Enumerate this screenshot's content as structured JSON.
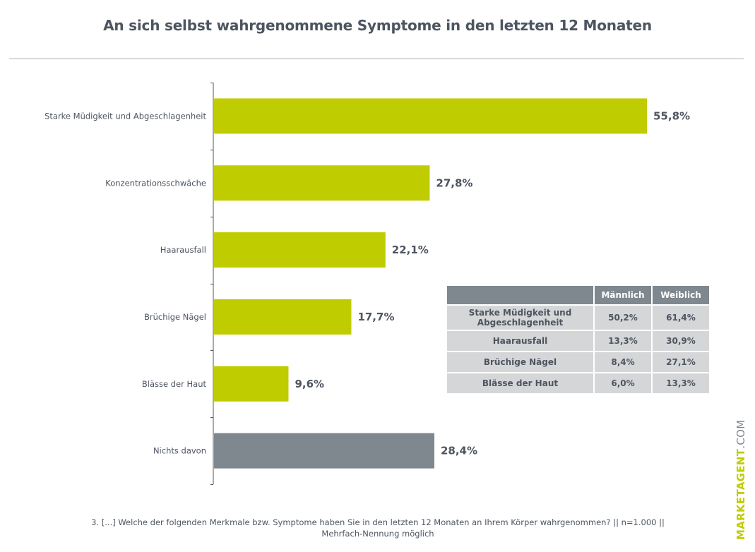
{
  "chart_data": {
    "type": "bar",
    "orientation": "horizontal",
    "title": "An sich selbst wahrgenommene Symptome in den letzten 12 Monaten",
    "categories": [
      "Starke Müdigkeit und Abgeschlagenheit",
      "Konzentrationsschwäche",
      "Haarausfall",
      "Brüchige Nägel",
      "Blässe der Haut",
      "Nichts davon"
    ],
    "values": [
      55.8,
      27.8,
      22.1,
      17.7,
      9.6,
      28.4
    ],
    "value_labels": [
      "55,8%",
      "27,8%",
      "22,1%",
      "17,7%",
      "9,6%",
      "28,4%"
    ],
    "bar_colors": [
      "#bfcc00",
      "#bfcc00",
      "#bfcc00",
      "#bfcc00",
      "#bfcc00",
      "#7f878f"
    ],
    "xlabel": "",
    "ylabel": "",
    "xlim": [
      0,
      60
    ],
    "grid": false,
    "unit": "%"
  },
  "inset_table": {
    "headers": [
      "",
      "Männlich",
      "Weiblich"
    ],
    "rows": [
      [
        "Starke Müdigkeit und Abgeschlagenheit",
        "50,2%",
        "61,4%"
      ],
      [
        "Haarausfall",
        "13,3%",
        "30,9%"
      ],
      [
        "Brüchige Nägel",
        "8,4%",
        "27,1%"
      ],
      [
        "Blässe der Haut",
        "6,0%",
        "13,3%"
      ]
    ]
  },
  "footnote": {
    "line1": "3. [...] Welche der folgenden Merkmale bzw. Symptome haben Sie in den letzten 12 Monaten an Ihrem Körper wahrgenommen? || n=1.000 ||",
    "line2": "Mehrfach-Nennung möglich"
  },
  "brand": {
    "name": "MARKETAGENT",
    "suffix": ".COM"
  },
  "colors": {
    "accent": "#bfcc00",
    "neutral": "#7f878f",
    "text": "#4d5560"
  }
}
